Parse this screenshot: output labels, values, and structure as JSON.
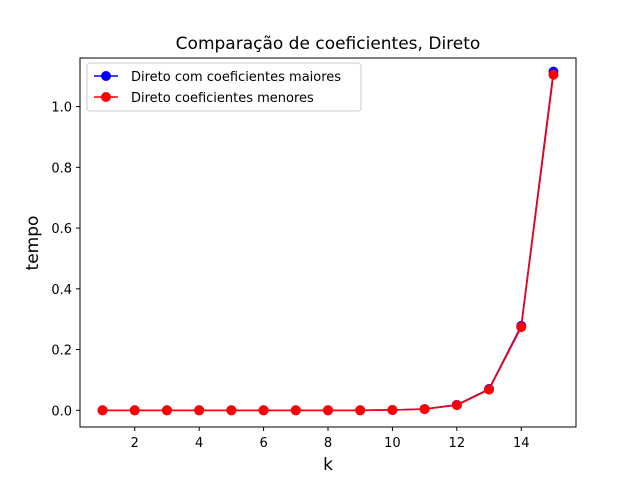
{
  "chart_data": {
    "type": "line",
    "title": "Comparação de coeficientes, Direto",
    "xlabel": "k",
    "ylabel": "tempo",
    "xlim": [
      0.3,
      15.7
    ],
    "ylim": [
      -0.055,
      1.16
    ],
    "xticks": [
      2,
      4,
      6,
      8,
      10,
      12,
      14
    ],
    "yticks": [
      0.0,
      0.2,
      0.4,
      0.6,
      0.8,
      1.0
    ],
    "xtick_labels": [
      "2",
      "4",
      "6",
      "8",
      "10",
      "12",
      "14"
    ],
    "ytick_labels": [
      "0.0",
      "0.2",
      "0.4",
      "0.6",
      "0.8",
      "1.0"
    ],
    "grid": false,
    "legend_position": "top-left",
    "x": [
      1,
      2,
      3,
      4,
      5,
      6,
      7,
      8,
      9,
      10,
      11,
      12,
      13,
      14,
      15
    ],
    "series": [
      {
        "name": "Direto com coeficientes maiores",
        "color": "#0000ff",
        "values": [
          0.0,
          0.0,
          0.0,
          0.0,
          0.0,
          0.0,
          0.0,
          0.0,
          0.0,
          0.001,
          0.004,
          0.018,
          0.07,
          0.278,
          1.115
        ]
      },
      {
        "name": "Direto coeficientes menores",
        "color": "#ff0000",
        "values": [
          0.0,
          0.0,
          0.0,
          0.0,
          0.0,
          0.0,
          0.0,
          0.0,
          0.0,
          0.001,
          0.004,
          0.017,
          0.068,
          0.274,
          1.105
        ]
      }
    ]
  }
}
